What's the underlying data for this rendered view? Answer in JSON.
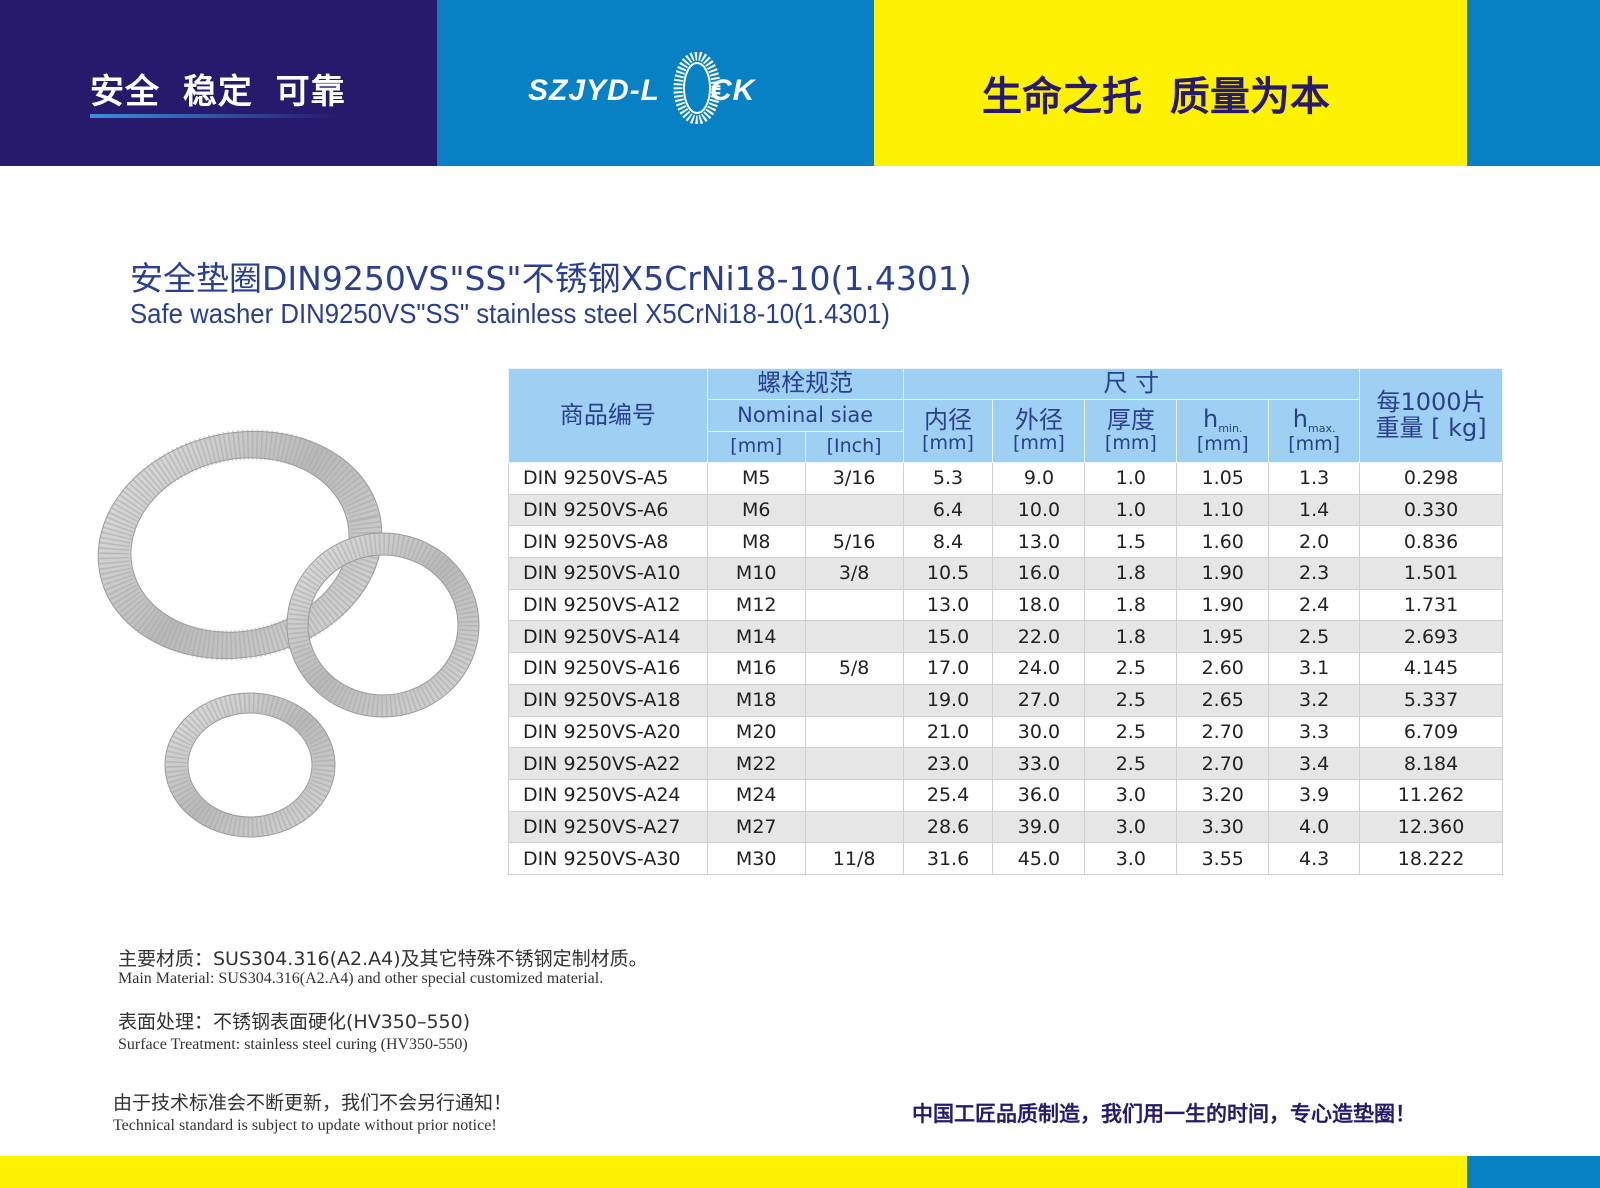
{
  "header": {
    "slogan_left": "安全 稳定 可靠",
    "logo_text_left": "SZJYD-L",
    "logo_text_right": "CK",
    "logo": "SZJYD-LOCK",
    "slogan_right": "生命之托 质量为本",
    "colors": {
      "navy": "#27196b",
      "blue": "#0880c4",
      "yellow": "#fff200"
    }
  },
  "title": {
    "cn": "安全垫圈DIN9250VS\"SS\"不锈钢X5CrNi18-10(1.4301)",
    "en": "Safe washer DIN9250VS\"SS\" stainless steel X5CrNi18-10(1.4301)"
  },
  "table": {
    "headers": {
      "code": "商品编号",
      "bolt": "螺栓规范",
      "nominal": "Nominal siae",
      "mm": "[mm]",
      "inch": "[Inch]",
      "size": "尺  寸",
      "inner": "内径",
      "outer": "外径",
      "thick": "厚度",
      "h": "h",
      "hmin_sub": "min.",
      "hmax_sub": "max.",
      "weight1": "每1000片",
      "weight2": "重量 [ kg]"
    },
    "rows": [
      [
        "DIN 9250VS-A5",
        "M5",
        "3/16",
        "5.3",
        "9.0",
        "1.0",
        "1.05",
        "1.3",
        "0.298"
      ],
      [
        "DIN 9250VS-A6",
        "M6",
        "",
        "6.4",
        "10.0",
        "1.0",
        "1.10",
        "1.4",
        "0.330"
      ],
      [
        "DIN 9250VS-A8",
        "M8",
        "5/16",
        "8.4",
        "13.0",
        "1.5",
        "1.60",
        "2.0",
        "0.836"
      ],
      [
        "DIN 9250VS-A10",
        "M10",
        "3/8",
        "10.5",
        "16.0",
        "1.8",
        "1.90",
        "2.3",
        "1.501"
      ],
      [
        "DIN 9250VS-A12",
        "M12",
        "",
        "13.0",
        "18.0",
        "1.8",
        "1.90",
        "2.4",
        "1.731"
      ],
      [
        "DIN 9250VS-A14",
        "M14",
        "",
        "15.0",
        "22.0",
        "1.8",
        "1.95",
        "2.5",
        "2.693"
      ],
      [
        "DIN 9250VS-A16",
        "M16",
        "5/8",
        "17.0",
        "24.0",
        "2.5",
        "2.60",
        "3.1",
        "4.145"
      ],
      [
        "DIN 9250VS-A18",
        "M18",
        "",
        "19.0",
        "27.0",
        "2.5",
        "2.65",
        "3.2",
        "5.337"
      ],
      [
        "DIN 9250VS-A20",
        "M20",
        "",
        "21.0",
        "30.0",
        "2.5",
        "2.70",
        "3.3",
        "6.709"
      ],
      [
        "DIN 9250VS-A22",
        "M22",
        "",
        "23.0",
        "33.0",
        "2.5",
        "2.70",
        "3.4",
        "8.184"
      ],
      [
        "DIN 9250VS-A24",
        "M24",
        "",
        "25.4",
        "36.0",
        "3.0",
        "3.20",
        "3.9",
        "11.262"
      ],
      [
        "DIN 9250VS-A27",
        "M27",
        "",
        "28.6",
        "39.0",
        "3.0",
        "3.30",
        "4.0",
        "12.360"
      ],
      [
        "DIN 9250VS-A30",
        "M30",
        "11/8",
        "31.6",
        "45.0",
        "3.0",
        "3.55",
        "4.3",
        "18.222"
      ]
    ]
  },
  "notes": {
    "material_cn": "主要材质：SUS304.316(A2.A4)及其它特殊不锈钢定制材质。",
    "material_en": "Main Material: SUS304.316(A2.A4) and other special customized material.",
    "surface_cn": "表面处理：不锈钢表面硬化(HV350–550)",
    "surface_en": "Surface Treatment: stainless steel curing (HV350-550)",
    "notice_cn": "由于技术标准会不断更新，我们不会另行通知！",
    "notice_en": "Technical standard is subject to update without prior notice!"
  },
  "footer": {
    "slogan": "中国工匠品质制造，我们用一生的时间，专心造垫圈！"
  }
}
